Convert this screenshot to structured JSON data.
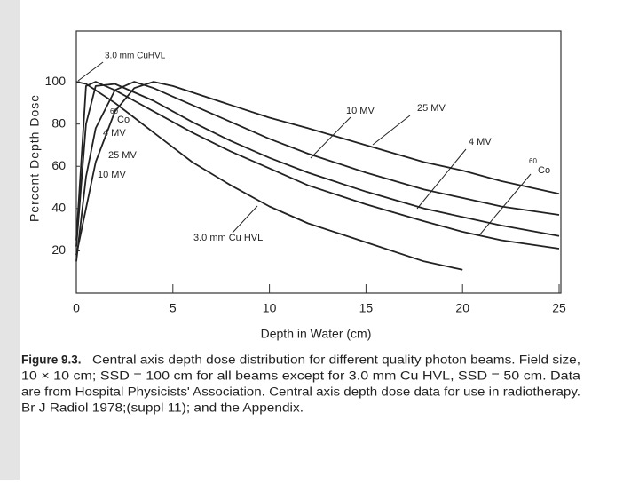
{
  "chart_data": {
    "type": "line",
    "x": [
      0,
      0.5,
      1,
      2,
      3,
      4,
      5,
      6,
      8,
      10,
      12,
      15,
      18,
      20,
      22,
      25
    ],
    "series": [
      {
        "name": "3.0 mm Cu HVL",
        "color": "#222222",
        "values": [
          100,
          99,
          96,
          90,
          83,
          76,
          69,
          62,
          51,
          41,
          33,
          24,
          15,
          11,
          null,
          null
        ]
      },
      {
        "name": "25 MV",
        "color": "#222222",
        "values": [
          18,
          40,
          62,
          86,
          97,
          100,
          98,
          95,
          89,
          83,
          78,
          70,
          62,
          58,
          53,
          47
        ]
      },
      {
        "name": "10 MV",
        "color": "#222222",
        "values": [
          15,
          55,
          78,
          96,
          100,
          97,
          93,
          89,
          81,
          73,
          66,
          57,
          49,
          45,
          41,
          37
        ]
      },
      {
        "name": "4 MV",
        "color": "#222222",
        "values": [
          22,
          80,
          98,
          99,
          95,
          91,
          86,
          81,
          72,
          64,
          57,
          48,
          40,
          36,
          32,
          27
        ]
      },
      {
        "name": "Co",
        "color": "#222222",
        "values": [
          25,
          98,
          100,
          96,
          91,
          86,
          81,
          76,
          67,
          59,
          51,
          42,
          34,
          29,
          25,
          21
        ]
      }
    ],
    "xlim": [
      0,
      25
    ],
    "xticks": [
      0,
      5,
      10,
      15,
      20,
      25
    ],
    "ylim": [
      0,
      124
    ],
    "yticks": [
      20,
      40,
      60,
      80,
      100
    ],
    "x_label": "Depth in Water (cm)",
    "y_label": "Percent Depth Dose",
    "annotations": [
      "3.0 mm CuHVL",
      "60",
      "Co",
      "4 MV",
      "25 MV",
      "10 MV",
      "60"
    ],
    "caption": {
      "label": "Figure 9.3.",
      "lines": [
        "Central axis depth dose distribution for different quality photon beams. Field size,",
        "10 × 10 cm; SSD = 100 cm for all beams except for 3.0 mm Cu HVL, SSD = 50 cm. Data",
        "are from Hospital Physicists' Association. Central axis depth dose data for use in radiotherapy.",
        "Br J Radiol 1978;(suppl 11); and the Appendix."
      ]
    }
  }
}
